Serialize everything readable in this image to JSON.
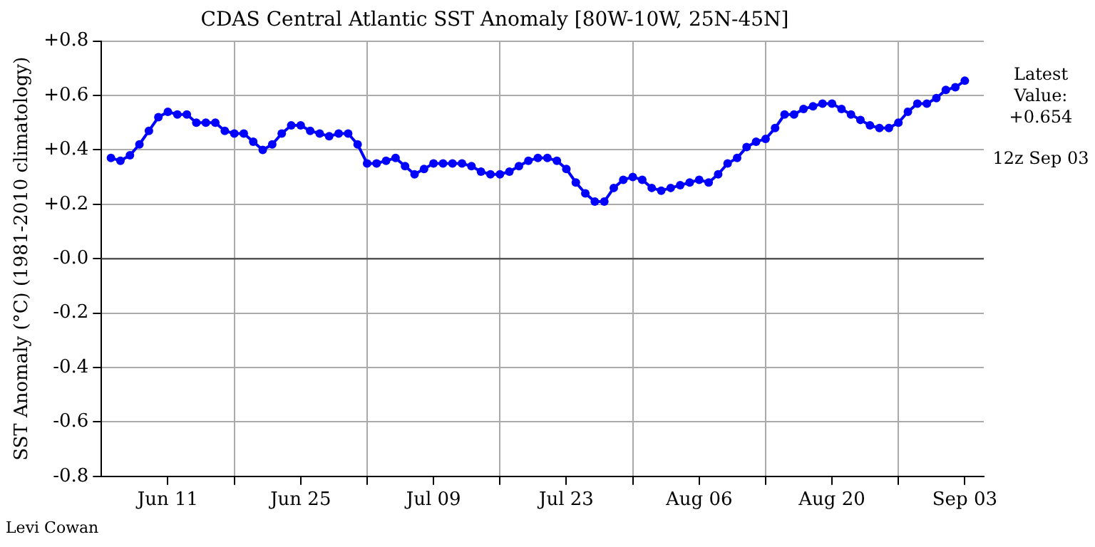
{
  "chart_data": {
    "type": "line",
    "title": "CDAS Central Atlantic SST Anomaly [80W-10W, 25N-45N]",
    "ylabel": "SST Anomaly (°C) (1981-2010 climatology)",
    "annotations": [
      "Latest\nValue:\n+0.654",
      "12z Sep 03",
      "Levi Cowan"
    ],
    "x": [
      "--06-05",
      "--06-06",
      "--06-07",
      "--06-08",
      "--06-09",
      "--06-10",
      "--06-11",
      "--06-12",
      "--06-13",
      "--06-14",
      "--06-15",
      "--06-16",
      "--06-17",
      "--06-18",
      "--06-19",
      "--06-20",
      "--06-21",
      "--06-22",
      "--06-23",
      "--06-24",
      "--06-25",
      "--06-26",
      "--06-27",
      "--06-28",
      "--06-29",
      "--06-30",
      "--07-01",
      "--07-02",
      "--07-03",
      "--07-04",
      "--07-05",
      "--07-06",
      "--07-07",
      "--07-08",
      "--07-09",
      "--07-10",
      "--07-11",
      "--07-12",
      "--07-13",
      "--07-14",
      "--07-15",
      "--07-16",
      "--07-17",
      "--07-18",
      "--07-19",
      "--07-20",
      "--07-21",
      "--07-22",
      "--07-23",
      "--07-24",
      "--07-25",
      "--07-26",
      "--07-27",
      "--07-28",
      "--07-29",
      "--07-30",
      "--07-31",
      "--08-01",
      "--08-02",
      "--08-03",
      "--08-04",
      "--08-05",
      "--08-06",
      "--08-07",
      "--08-08",
      "--08-09",
      "--08-10",
      "--08-11",
      "--08-12",
      "--08-13",
      "--08-14",
      "--08-15",
      "--08-16",
      "--08-17",
      "--08-18",
      "--08-19",
      "--08-20",
      "--08-21",
      "--08-22",
      "--08-23",
      "--08-24",
      "--08-25",
      "--08-26",
      "--08-27",
      "--08-28",
      "--08-29",
      "--08-30",
      "--08-31",
      "--09-01",
      "--09-02",
      "--09-03"
    ],
    "series": [
      {
        "color": "#0000ff",
        "values": [
          0.37,
          0.36,
          0.38,
          0.42,
          0.47,
          0.52,
          0.54,
          0.53,
          0.53,
          0.5,
          0.5,
          0.5,
          0.47,
          0.46,
          0.46,
          0.43,
          0.4,
          0.42,
          0.46,
          0.49,
          0.49,
          0.47,
          0.46,
          0.45,
          0.46,
          0.46,
          0.42,
          0.35,
          0.35,
          0.36,
          0.37,
          0.34,
          0.31,
          0.33,
          0.35,
          0.35,
          0.35,
          0.35,
          0.34,
          0.32,
          0.31,
          0.31,
          0.32,
          0.34,
          0.36,
          0.37,
          0.37,
          0.36,
          0.33,
          0.28,
          0.24,
          0.21,
          0.21,
          0.26,
          0.29,
          0.3,
          0.29,
          0.26,
          0.25,
          0.26,
          0.27,
          0.28,
          0.29,
          0.28,
          0.31,
          0.35,
          0.37,
          0.41,
          0.43,
          0.44,
          0.48,
          0.53,
          0.53,
          0.55,
          0.56,
          0.57,
          0.57,
          0.55,
          0.53,
          0.51,
          0.49,
          0.48,
          0.48,
          0.5,
          0.54,
          0.57,
          0.57,
          0.59,
          0.62,
          0.63,
          0.654
        ]
      }
    ],
    "xlim": [
      "--06-04",
      "--09-05"
    ],
    "xticks": [
      {
        "value": "--06-11",
        "label": "Jun 11"
      },
      {
        "value": "--06-18",
        "label": null
      },
      {
        "value": "--06-25",
        "label": "Jun 25"
      },
      {
        "value": "--07-02",
        "label": null
      },
      {
        "value": "--07-09",
        "label": "Jul 09"
      },
      {
        "value": "--07-16",
        "label": null
      },
      {
        "value": "--07-23",
        "label": "Jul 23"
      },
      {
        "value": "--07-30",
        "label": null
      },
      {
        "value": "--08-06",
        "label": "Aug 06"
      },
      {
        "value": "--08-13",
        "label": null
      },
      {
        "value": "--08-20",
        "label": "Aug 20"
      },
      {
        "value": "--08-27",
        "label": null
      },
      {
        "value": "--09-03",
        "label": "Sep 03"
      }
    ],
    "ylim": [
      -0.8,
      0.8
    ],
    "yticks": [
      {
        "value": -0.8,
        "label": "-0.8"
      },
      {
        "value": -0.6,
        "label": "-0.6"
      },
      {
        "value": -0.4,
        "label": "-0.4"
      },
      {
        "value": -0.2,
        "label": "-0.2"
      },
      {
        "value": 0,
        "label": "-0.0"
      },
      {
        "value": 0.2,
        "label": "+0.2"
      },
      {
        "value": 0.4,
        "label": "+0.4"
      },
      {
        "value": 0.6,
        "label": "+0.6"
      },
      {
        "value": 0.8,
        "label": "+0.8"
      }
    ],
    "ref_lines": [
      {
        "axis": "y",
        "value": 0,
        "color": "#555555"
      }
    ],
    "grid": true,
    "legend": false,
    "marker": "circle",
    "line_style": "solid"
  }
}
